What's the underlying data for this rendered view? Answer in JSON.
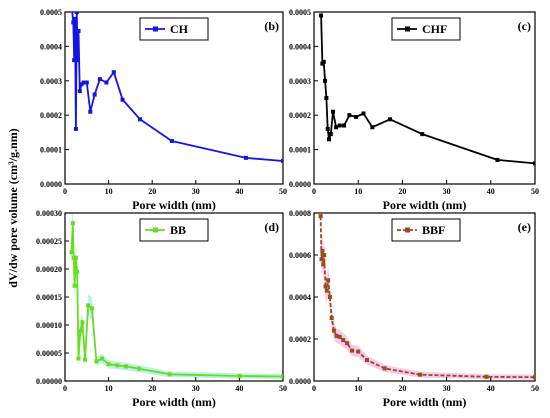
{
  "figure": {
    "ylabel": "dV/dw pore volume (cm³/g.nm)"
  },
  "chart_data": [
    {
      "type": "line",
      "panel_label": "(b)",
      "legend": "CH",
      "legend_placement": "top-right",
      "color": "#1414e6",
      "marker": "square",
      "line_style": "solid",
      "shaded_band": false,
      "xlabel": "Pore width (nm)",
      "xlim": [
        0,
        50
      ],
      "ylim": [
        0,
        0.0005
      ],
      "x_ticks": [
        "0",
        "10",
        "20",
        "30",
        "40",
        "50"
      ],
      "y_ticks": [
        "0.0000",
        "0.0001",
        "0.0002",
        "0.0003",
        "0.0004",
        "0.0005"
      ],
      "x": [
        1.6,
        1.9,
        2.1,
        2.3,
        2.5,
        2.7,
        2.9,
        3.1,
        3.4,
        3.8,
        4.3,
        5.0,
        5.8,
        6.8,
        8.0,
        9.5,
        11.2,
        13.2,
        17.2,
        24.5,
        41.5,
        50
      ],
      "y": [
        0.000505,
        0.00047,
        0.00036,
        0.00048,
        0.00016,
        0.0005,
        0.00036,
        0.000445,
        0.00027,
        0.00029,
        0.000295,
        0.000295,
        0.00021,
        0.00026,
        0.000305,
        0.000295,
        0.000325,
        0.000245,
        0.000188,
        0.000125,
        7.6e-05,
        6.7e-05
      ]
    },
    {
      "type": "line",
      "panel_label": "(c)",
      "legend": "CHF",
      "legend_placement": "top-right",
      "color": "#000000",
      "marker": "square",
      "line_style": "solid",
      "shaded_band": false,
      "xlabel": "Pore width (nm)",
      "xlim": [
        0,
        50
      ],
      "ylim": [
        0,
        0.0005
      ],
      "x_ticks": [
        "0",
        "10",
        "20",
        "30",
        "40",
        "50"
      ],
      "y_ticks": [
        "0.0000",
        "0.0001",
        "0.0002",
        "0.0003",
        "0.0004",
        "0.0005"
      ],
      "x": [
        1.6,
        1.9,
        2.2,
        2.5,
        2.8,
        3.1,
        3.4,
        3.8,
        4.3,
        5.0,
        5.8,
        6.8,
        8.0,
        9.5,
        11.2,
        13.2,
        17.2,
        24.5,
        41.5,
        50
      ],
      "y": [
        0.00049,
        0.00035,
        0.000355,
        0.0003,
        0.00025,
        0.00016,
        0.00013,
        0.000145,
        0.00021,
        0.000165,
        0.00017,
        0.00017,
        0.0002,
        0.000195,
        0.000205,
        0.000165,
        0.000188,
        0.000145,
        7e-05,
        6e-05
      ]
    },
    {
      "type": "line",
      "panel_label": "(d)",
      "legend": "BB",
      "legend_placement": "top-right",
      "color": "#66dd22",
      "marker": "square",
      "line_style": "solid",
      "shaded_band": true,
      "band_color": "#bff0e6",
      "xlabel": "Pore width (nm)",
      "xlim": [
        0,
        50
      ],
      "ylim": [
        0,
        0.0003
      ],
      "x_ticks": [
        "0",
        "10",
        "20",
        "30",
        "40",
        "50"
      ],
      "y_ticks": [
        "0.00000",
        "0.00005",
        "0.00010",
        "0.00015",
        "0.00020",
        "0.00025",
        "0.00030"
      ],
      "x": [
        1.5,
        1.8,
        2.0,
        2.2,
        2.5,
        2.8,
        3.1,
        3.5,
        4.0,
        4.6,
        5.3,
        6.2,
        7.2,
        8.5,
        10.0,
        12.0,
        14.0,
        17.0,
        24.0,
        40.0,
        50
      ],
      "y": [
        0.00023,
        0.000282,
        0.00022,
        0.00017,
        0.00022,
        0.000195,
        4e-05,
        9e-05,
        0.000105,
        3.8e-05,
        0.000135,
        0.00013,
        3.5e-05,
        4e-05,
        3e-05,
        2.8e-05,
        2.6e-05,
        2.2e-05,
        1.2e-05,
        9e-06,
        8e-06
      ]
    },
    {
      "type": "line",
      "panel_label": "(e)",
      "legend": "BBF",
      "legend_placement": "top-right",
      "color": "#9b4a1c",
      "marker": "square",
      "line_style": "dashed",
      "shaded_band": true,
      "band_color": "#f5c8ee",
      "xlabel": "Pore width (nm)",
      "xlim": [
        0,
        50
      ],
      "ylim": [
        0,
        0.0008
      ],
      "x_ticks": [
        "0",
        "10",
        "20",
        "30",
        "40",
        "50"
      ],
      "y_ticks": [
        "0.0000",
        "0.0002",
        "0.0004",
        "0.0006",
        "0.0008"
      ],
      "x": [
        1.5,
        1.7,
        1.9,
        2.1,
        2.3,
        2.6,
        2.9,
        3.2,
        3.6,
        4.0,
        4.5,
        5.1,
        5.8,
        6.6,
        7.5,
        8.6,
        10.0,
        12.0,
        16.0,
        24.0,
        39.0,
        50
      ],
      "y": [
        0.000785,
        0.00058,
        0.00062,
        0.000555,
        0.0006,
        0.00045,
        0.00043,
        0.00048,
        0.0004,
        0.0003,
        0.00024,
        0.000215,
        0.00021,
        0.000195,
        0.00018,
        0.000145,
        0.00014,
        0.0001,
        6e-05,
        3e-05,
        2e-05,
        1.8e-05
      ]
    }
  ]
}
